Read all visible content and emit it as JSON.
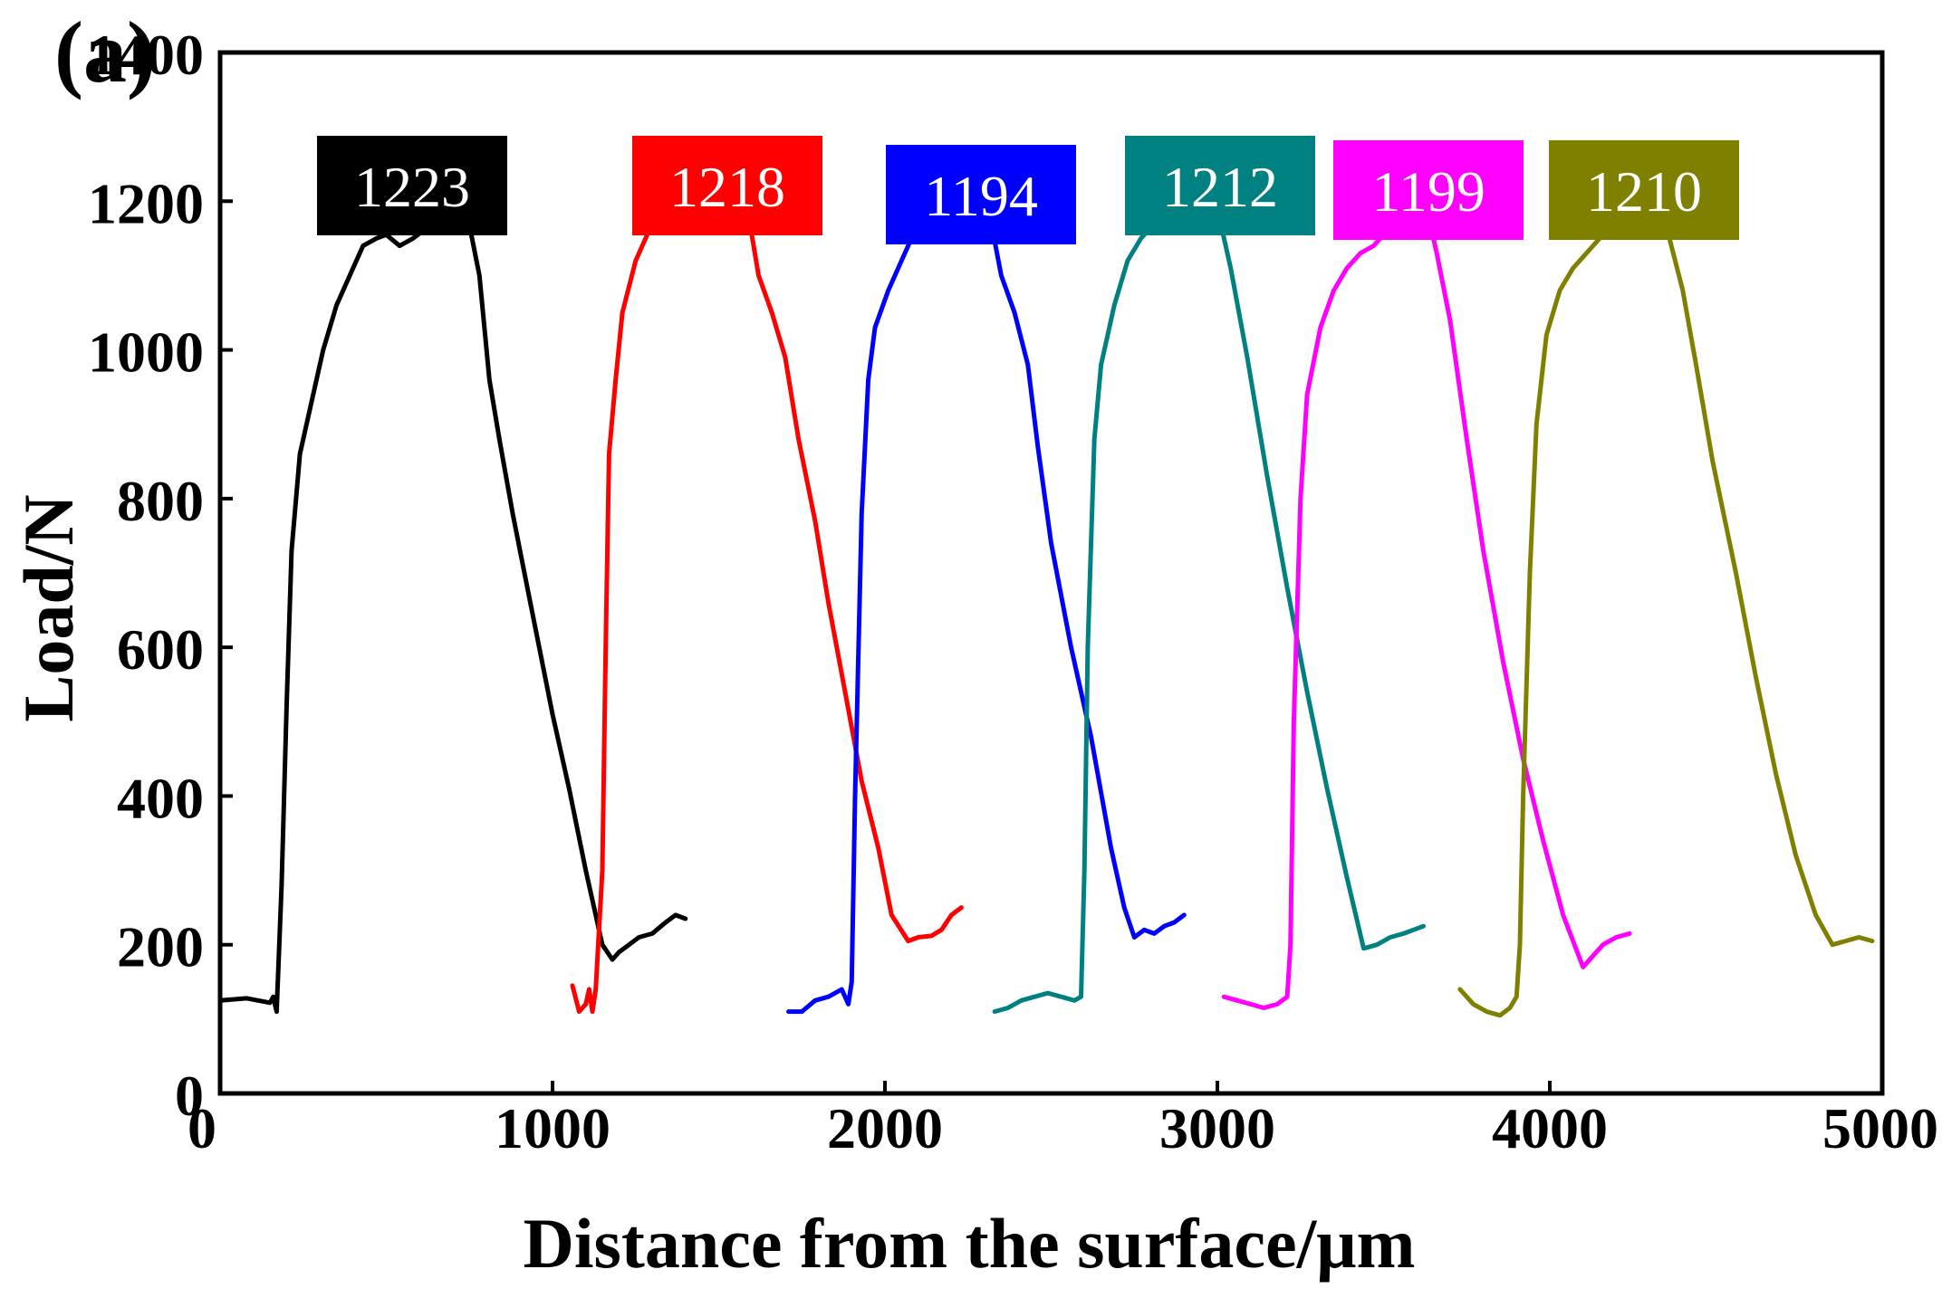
{
  "panel_label": "(a)",
  "chart_data": {
    "type": "line",
    "title": "",
    "xlabel": "Distance from the surface/μm",
    "ylabel": "Load/N",
    "xlim": [
      0,
      5000
    ],
    "ylim": [
      0,
      1400
    ],
    "xticks": [
      0,
      1000,
      2000,
      3000,
      4000,
      5000
    ],
    "yticks": [
      0,
      200,
      400,
      600,
      800,
      1000,
      1200,
      1400
    ],
    "xtick_labels": [
      "0",
      "1000",
      "2000",
      "3000",
      "4000",
      "5000"
    ],
    "ytick_labels": [
      "0",
      "200",
      "400",
      "600",
      "800",
      "1000",
      "1200",
      "1400"
    ],
    "grid": false,
    "series": [
      {
        "name": "1223",
        "label": "1223",
        "color": "#000000",
        "x": [
          0,
          80,
          150,
          160,
          170,
          185,
          200,
          215,
          240,
          270,
          310,
          350,
          400,
          430,
          470,
          500,
          540,
          580,
          610,
          640,
          670,
          710,
          740,
          780,
          810,
          840,
          880,
          920,
          960,
          1000,
          1050,
          1100,
          1150,
          1180,
          1200,
          1230,
          1260,
          1300,
          1340,
          1370,
          1400
        ],
        "y": [
          125,
          128,
          122,
          130,
          110,
          280,
          520,
          730,
          860,
          920,
          1000,
          1060,
          1110,
          1140,
          1150,
          1155,
          1140,
          1150,
          1160,
          1195,
          1215,
          1223,
          1190,
          1100,
          960,
          880,
          780,
          690,
          600,
          510,
          410,
          300,
          200,
          180,
          190,
          200,
          210,
          215,
          230,
          240,
          235
        ]
      },
      {
        "name": "1218",
        "label": "1218",
        "color": "#ff0000",
        "x": [
          1060,
          1080,
          1100,
          1110,
          1120,
          1130,
          1150,
          1160,
          1170,
          1190,
          1210,
          1250,
          1290,
          1330,
          1370,
          1410,
          1450,
          1490,
          1520,
          1560,
          1590,
          1620,
          1660,
          1700,
          1740,
          1790,
          1830,
          1880,
          1930,
          1980,
          2020,
          2070,
          2100,
          2140,
          2170,
          2200,
          2230
        ],
        "y": [
          145,
          110,
          120,
          140,
          110,
          140,
          300,
          600,
          860,
          960,
          1050,
          1120,
          1160,
          1180,
          1185,
          1200,
          1210,
          1215,
          1218,
          1210,
          1180,
          1100,
          1050,
          990,
          880,
          770,
          660,
          540,
          420,
          330,
          240,
          205,
          210,
          212,
          220,
          240,
          250
        ]
      },
      {
        "name": "1194",
        "label": "1194",
        "color": "#0000ff",
        "x": [
          1710,
          1750,
          1790,
          1830,
          1870,
          1890,
          1900,
          1910,
          1930,
          1950,
          1970,
          2010,
          2050,
          2090,
          2130,
          2170,
          2210,
          2250,
          2290,
          2320,
          2350,
          2390,
          2430,
          2460,
          2500,
          2560,
          2620,
          2680,
          2720,
          2750,
          2780,
          2810,
          2840,
          2870,
          2900
        ],
        "y": [
          110,
          110,
          125,
          130,
          140,
          120,
          150,
          400,
          780,
          960,
          1030,
          1080,
          1120,
          1160,
          1170,
          1180,
          1190,
          1194,
          1185,
          1170,
          1100,
          1050,
          980,
          870,
          740,
          600,
          480,
          330,
          250,
          210,
          220,
          215,
          225,
          230,
          240
        ]
      },
      {
        "name": "1212",
        "label": "1212",
        "color": "#008080",
        "x": [
          2330,
          2370,
          2410,
          2450,
          2490,
          2530,
          2570,
          2590,
          2600,
          2610,
          2630,
          2650,
          2690,
          2730,
          2770,
          2810,
          2850,
          2890,
          2930,
          2970,
          3000,
          3040,
          3090,
          3150,
          3210,
          3270,
          3330,
          3390,
          3440,
          3480,
          3520,
          3560,
          3590,
          3620
        ],
        "y": [
          110,
          115,
          125,
          130,
          135,
          130,
          125,
          130,
          300,
          600,
          880,
          980,
          1060,
          1120,
          1150,
          1170,
          1180,
          1190,
          1200,
          1212,
          1190,
          1110,
          990,
          830,
          680,
          540,
          410,
          290,
          195,
          200,
          210,
          215,
          220,
          225
        ]
      },
      {
        "name": "1199",
        "label": "1199",
        "color": "#ff00ff",
        "x": [
          3020,
          3060,
          3100,
          3140,
          3180,
          3210,
          3220,
          3230,
          3250,
          3270,
          3310,
          3350,
          3390,
          3430,
          3470,
          3510,
          3550,
          3590,
          3620,
          3640,
          3660,
          3700,
          3750,
          3800,
          3860,
          3920,
          3980,
          4040,
          4100,
          4160,
          4200,
          4240
        ],
        "y": [
          130,
          125,
          120,
          115,
          120,
          130,
          200,
          500,
          800,
          940,
          1030,
          1080,
          1110,
          1130,
          1140,
          1160,
          1180,
          1199,
          1195,
          1170,
          1130,
          1040,
          880,
          730,
          580,
          450,
          340,
          240,
          170,
          200,
          210,
          215
        ]
      },
      {
        "name": "1210",
        "label": "1210",
        "color": "#808000",
        "x": [
          3730,
          3770,
          3810,
          3850,
          3880,
          3900,
          3910,
          3920,
          3940,
          3960,
          3990,
          4030,
          4070,
          4110,
          4150,
          4190,
          4230,
          4260,
          4290,
          4320,
          4360,
          4400,
          4440,
          4490,
          4560,
          4620,
          4680,
          4740,
          4800,
          4850,
          4890,
          4930,
          4970
        ],
        "y": [
          140,
          120,
          110,
          105,
          115,
          130,
          200,
          400,
          700,
          900,
          1020,
          1080,
          1110,
          1130,
          1150,
          1170,
          1200,
          1210,
          1205,
          1195,
          1150,
          1080,
          980,
          850,
          700,
          560,
          430,
          320,
          240,
          200,
          205,
          210,
          205
        ]
      }
    ]
  }
}
